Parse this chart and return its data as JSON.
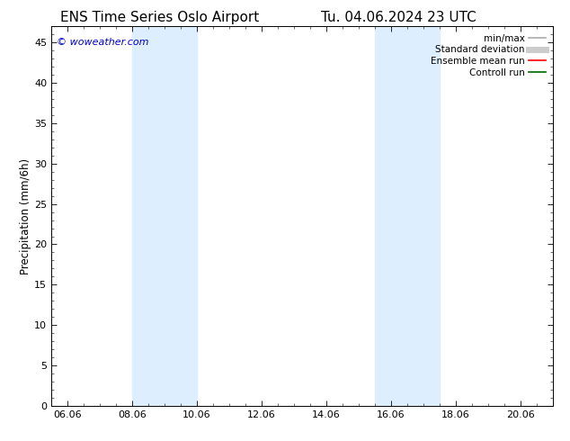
{
  "title_left": "ENS Time Series Oslo Airport",
  "title_right": "Tu. 04.06.2024 23 UTC",
  "ylabel": "Precipitation (mm/6h)",
  "watermark": "© woweather.com",
  "watermark_color": "#0000cc",
  "background_color": "#ffffff",
  "plot_bg_color": "#ffffff",
  "xmin": 5.5,
  "xmax": 21.0,
  "ymin": 0,
  "ymax": 47,
  "xtick_labels": [
    "06.06",
    "08.06",
    "10.06",
    "12.06",
    "14.06",
    "16.06",
    "18.06",
    "20.06"
  ],
  "xtick_positions": [
    6.0,
    8.0,
    10.0,
    12.0,
    14.0,
    16.0,
    18.0,
    20.0
  ],
  "ytick_positions": [
    0,
    5,
    10,
    15,
    20,
    25,
    30,
    35,
    40,
    45
  ],
  "shaded_bands": [
    {
      "x_start": 8.0,
      "x_end": 10.0,
      "color": "#ddeeff"
    },
    {
      "x_start": 15.5,
      "x_end": 17.5,
      "color": "#ddeeff"
    }
  ],
  "legend_items": [
    {
      "label": "min/max",
      "color": "#aaaaaa",
      "lw": 1.2,
      "style": "solid"
    },
    {
      "label": "Standard deviation",
      "color": "#cccccc",
      "lw": 5,
      "style": "solid"
    },
    {
      "label": "Ensemble mean run",
      "color": "#ff0000",
      "lw": 1.2,
      "style": "solid"
    },
    {
      "label": "Controll run",
      "color": "#006600",
      "lw": 1.2,
      "style": "solid"
    }
  ],
  "title_fontsize": 11,
  "label_fontsize": 8.5,
  "tick_fontsize": 8,
  "legend_fontsize": 7.5,
  "watermark_fontsize": 8
}
